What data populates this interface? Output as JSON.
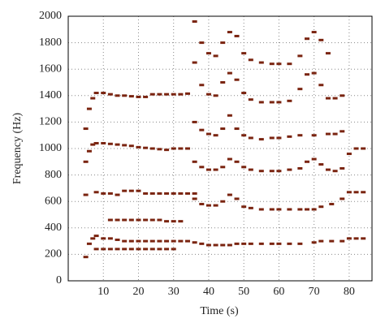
{
  "chart_data": {
    "type": "scatter",
    "xlabel": "Time (s)",
    "ylabel": "Frequency (Hz)",
    "xlim": [
      0,
      86.5
    ],
    "ylim": [
      0,
      2000
    ],
    "xticks": [
      10,
      20,
      30,
      40,
      50,
      60,
      70,
      80
    ],
    "yticks": [
      0,
      200,
      400,
      600,
      800,
      1000,
      1200,
      1400,
      1600,
      1800,
      2000
    ],
    "grid": true,
    "series": [
      {
        "color": "#7a2410",
        "x": [
          5,
          6,
          7,
          8,
          10,
          12,
          14,
          16,
          18,
          20,
          22,
          24,
          26,
          28,
          30,
          32,
          34
        ],
        "values": [
          1150,
          1300,
          1380,
          1420,
          1420,
          1410,
          1400,
          1400,
          1395,
          1390,
          1390,
          1410,
          1410,
          1410,
          1410,
          1410,
          1415
        ]
      },
      {
        "color": "#7a2410",
        "x": [
          5,
          6,
          7,
          8,
          10,
          12,
          14,
          16,
          18,
          20,
          22,
          24,
          26,
          28,
          30,
          32,
          34
        ],
        "values": [
          900,
          980,
          1030,
          1040,
          1040,
          1035,
          1030,
          1025,
          1020,
          1010,
          1005,
          1000,
          995,
          990,
          1000,
          1000,
          1000
        ]
      },
      {
        "color": "#7a2410",
        "x": [
          5,
          8,
          10,
          12,
          14,
          16,
          18,
          20,
          22,
          24,
          26,
          28,
          30,
          32,
          34,
          36
        ],
        "values": [
          650,
          670,
          660,
          660,
          650,
          680,
          680,
          680,
          660,
          660,
          660,
          660,
          660,
          660,
          660,
          660
        ]
      },
      {
        "color": "#7a2410",
        "x": [
          5,
          6,
          7,
          8,
          10,
          12,
          14,
          16,
          18,
          20,
          22,
          24,
          26,
          28,
          30,
          32,
          34
        ],
        "values": [
          180,
          280,
          320,
          340,
          320,
          320,
          310,
          300,
          300,
          300,
          300,
          300,
          300,
          300,
          300,
          300,
          300
        ]
      },
      {
        "color": "#7a2410",
        "x": [
          12,
          14,
          16,
          18,
          20,
          22,
          24,
          26,
          28,
          30,
          32
        ],
        "values": [
          460,
          460,
          460,
          460,
          460,
          460,
          460,
          460,
          450,
          450,
          450
        ]
      },
      {
        "color": "#7a2410",
        "x": [
          8,
          10,
          12,
          14,
          16,
          18,
          20,
          22,
          24,
          26,
          28,
          30
        ],
        "values": [
          240,
          240,
          240,
          240,
          240,
          240,
          240,
          240,
          240,
          240,
          240,
          240
        ]
      },
      {
        "color": "#7a2410",
        "x": [
          36,
          38,
          40,
          42,
          44,
          46,
          48,
          50,
          52,
          55,
          58,
          60,
          63,
          66,
          70,
          72,
          75,
          78,
          80,
          82,
          84
        ],
        "values": [
          290,
          280,
          270,
          270,
          270,
          270,
          280,
          280,
          280,
          280,
          280,
          280,
          280,
          280,
          290,
          300,
          300,
          300,
          320,
          320,
          320
        ]
      },
      {
        "color": "#7a2410",
        "x": [
          36,
          38,
          40,
          42,
          44,
          46,
          48,
          50,
          52,
          55,
          58,
          60,
          63,
          66,
          68,
          70,
          72,
          75,
          78,
          80,
          82,
          84
        ],
        "values": [
          620,
          580,
          570,
          570,
          600,
          650,
          620,
          560,
          550,
          540,
          540,
          540,
          540,
          540,
          540,
          540,
          560,
          580,
          620,
          670,
          670,
          670
        ]
      },
      {
        "color": "#7a2410",
        "x": [
          36,
          38,
          40,
          42,
          44,
          46,
          48,
          50,
          52,
          55,
          58,
          60,
          63,
          66,
          68,
          70,
          72,
          74,
          76,
          78,
          80,
          82,
          84
        ],
        "values": [
          900,
          860,
          840,
          840,
          860,
          920,
          900,
          860,
          840,
          830,
          830,
          830,
          840,
          850,
          900,
          920,
          880,
          840,
          830,
          850,
          960,
          1000,
          1000
        ]
      },
      {
        "color": "#7a2410",
        "x": [
          36,
          38,
          40,
          42,
          44,
          46,
          48,
          50,
          52,
          55,
          58,
          60,
          63,
          66,
          70,
          74,
          76,
          78
        ],
        "values": [
          1200,
          1140,
          1110,
          1100,
          1150,
          1250,
          1150,
          1100,
          1080,
          1070,
          1080,
          1080,
          1090,
          1100,
          1100,
          1110,
          1110,
          1130
        ]
      },
      {
        "color": "#7a2410",
        "x": [
          36,
          38,
          40,
          42,
          44,
          46,
          48,
          50,
          52,
          55,
          58,
          60,
          63,
          66,
          68,
          70,
          72,
          74,
          76,
          78
        ],
        "values": [
          1650,
          1480,
          1410,
          1400,
          1500,
          1570,
          1520,
          1420,
          1370,
          1350,
          1350,
          1350,
          1360,
          1450,
          1560,
          1570,
          1480,
          1380,
          1380,
          1400
        ]
      },
      {
        "color": "#7a2410",
        "x": [
          36,
          38,
          40,
          42,
          44,
          46,
          48,
          50,
          52,
          55,
          58,
          60,
          63,
          66,
          68,
          70,
          72,
          74
        ],
        "values": [
          1960,
          1800,
          1720,
          1700,
          1800,
          1880,
          1850,
          1720,
          1670,
          1650,
          1640,
          1640,
          1640,
          1700,
          1830,
          1880,
          1820,
          1720
        ]
      }
    ]
  }
}
